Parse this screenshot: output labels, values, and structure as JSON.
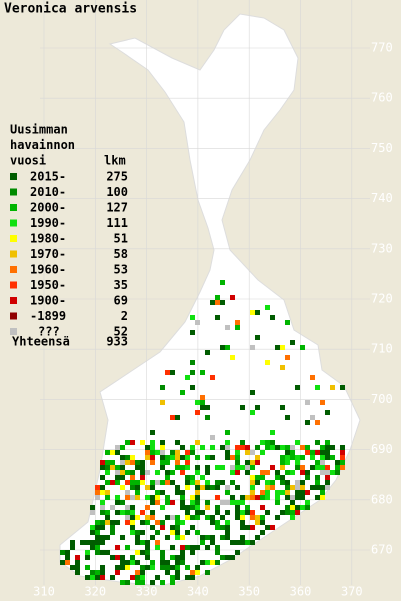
{
  "title": "Veronica arvensis",
  "legend": {
    "header": [
      "Uusimman",
      "havainnon",
      "vuosi"
    ],
    "count_header": "lkm",
    "items": [
      {
        "label": "2015-",
        "count": 275,
        "color": "#005c00"
      },
      {
        "label": "2010-",
        "count": 100,
        "color": "#008a00"
      },
      {
        "label": "2000-",
        "count": 127,
        "color": "#00b400"
      },
      {
        "label": "1990-",
        "count": 111,
        "color": "#10e010"
      },
      {
        "label": "1980-",
        "count": 51,
        "color": "#ffff00"
      },
      {
        "label": "1970-",
        "count": 58,
        "color": "#f0c000"
      },
      {
        "label": "1960-",
        "count": 53,
        "color": "#ff7000"
      },
      {
        "label": "1950-",
        "count": 35,
        "color": "#ff3000"
      },
      {
        "label": "1900-",
        "count": 69,
        "color": "#d00000"
      },
      {
        "label": "-1899",
        "count": 2,
        "color": "#900000"
      },
      {
        "label": "???",
        "count": 52,
        "color": "#c0c0c0"
      }
    ],
    "total": {
      "label": "Yhteensä",
      "count": 933
    }
  },
  "x_labels": [
    310,
    320,
    330,
    340,
    350,
    360,
    370
  ],
  "y_labels": [
    770,
    760,
    750,
    740,
    730,
    720,
    710,
    700,
    690,
    680,
    670
  ]
}
